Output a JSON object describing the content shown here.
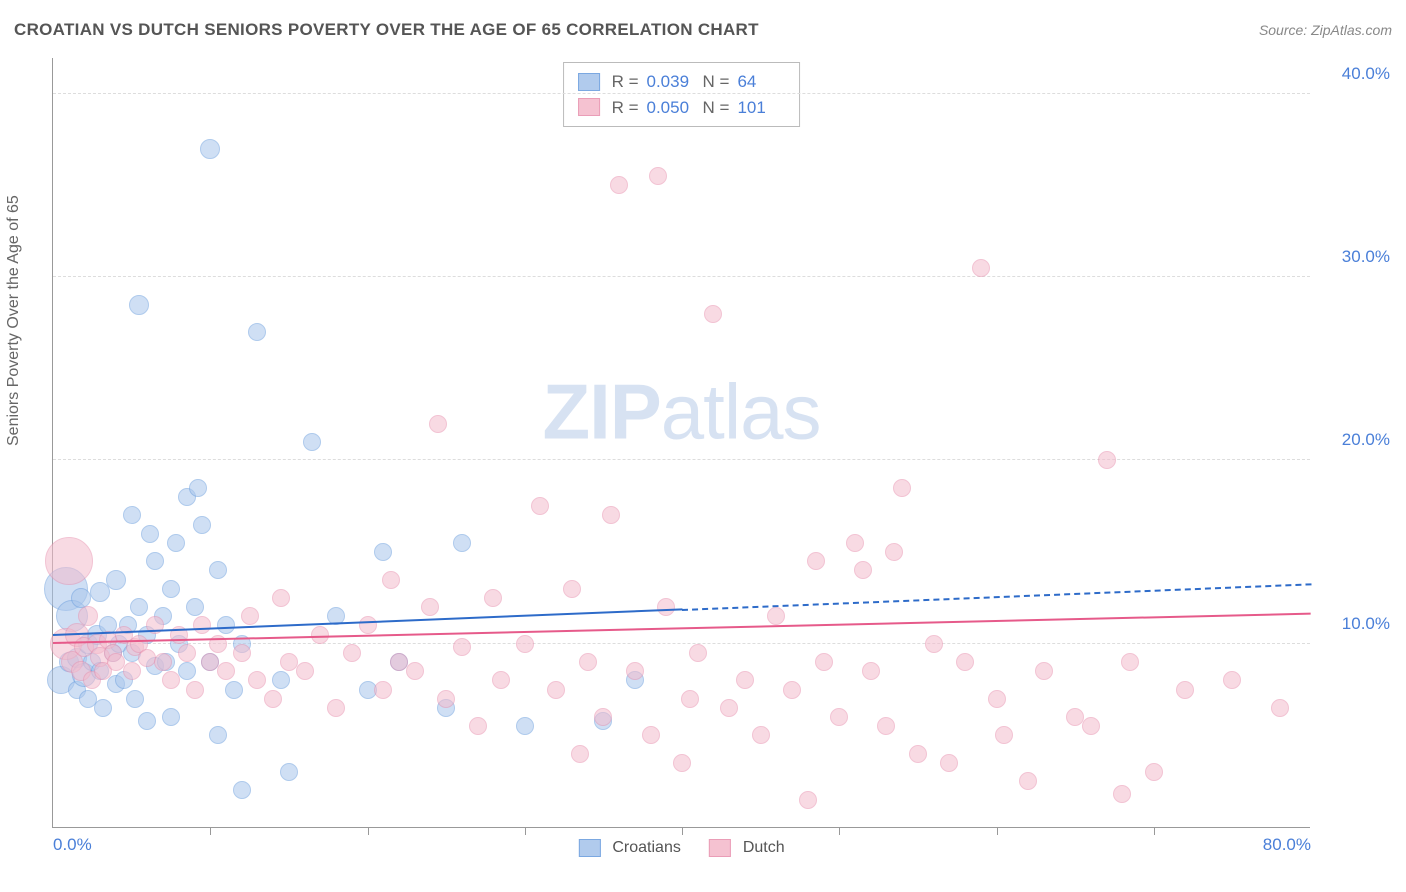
{
  "title": "CROATIAN VS DUTCH SENIORS POVERTY OVER THE AGE OF 65 CORRELATION CHART",
  "source": "Source: ZipAtlas.com",
  "ylabel": "Seniors Poverty Over the Age of 65",
  "watermark_bold": "ZIP",
  "watermark_rest": "atlas",
  "chart": {
    "type": "scatter",
    "xlim": [
      0,
      80
    ],
    "ylim": [
      0,
      42
    ],
    "xticks_minor": [
      10,
      20,
      30,
      40,
      50,
      60,
      70
    ],
    "xtick_labels": [
      {
        "v": 0,
        "label": "0.0%",
        "align": "left"
      },
      {
        "v": 80,
        "label": "80.0%",
        "align": "right"
      }
    ],
    "ytick_labels": [
      {
        "v": 10,
        "label": "10.0%"
      },
      {
        "v": 20,
        "label": "20.0%"
      },
      {
        "v": 30,
        "label": "30.0%"
      },
      {
        "v": 40,
        "label": "40.0%"
      }
    ],
    "grid_color": "#dddddd",
    "background_color": "#ffffff",
    "axis_color": "#999999"
  },
  "series": [
    {
      "key": "croatians",
      "label": "Croatians",
      "fill": "#a9c6ec",
      "stroke": "#6d9fde",
      "fill_opacity": 0.55,
      "marker_r": 9,
      "trend": {
        "x0": 0,
        "y0": 10.4,
        "x1": 40,
        "y1": 11.8,
        "x_extend": 80,
        "y_extend": 13.2,
        "color": "#2d6bc9"
      },
      "R_label": "R = ",
      "R": "0.039",
      "N_label": "N = ",
      "N": "64",
      "points": [
        [
          0.5,
          8.0,
          14
        ],
        [
          0.8,
          13.0,
          22
        ],
        [
          1.0,
          9.0,
          10
        ],
        [
          1.2,
          11.5,
          16
        ],
        [
          1.5,
          9.2,
          10
        ],
        [
          1.5,
          7.5,
          9
        ],
        [
          1.8,
          12.5,
          10
        ],
        [
          2.0,
          8.3,
          12
        ],
        [
          2.2,
          10.0,
          10
        ],
        [
          2.2,
          7.0,
          9
        ],
        [
          2.5,
          9.0,
          9
        ],
        [
          2.8,
          10.5,
          10
        ],
        [
          3.0,
          8.5,
          9
        ],
        [
          3.0,
          12.8,
          10
        ],
        [
          3.2,
          6.5,
          9
        ],
        [
          3.5,
          11.0,
          9
        ],
        [
          3.8,
          9.5,
          9
        ],
        [
          4.0,
          13.5,
          10
        ],
        [
          4.0,
          7.8,
          9
        ],
        [
          4.2,
          10.0,
          9
        ],
        [
          4.5,
          8.0,
          9
        ],
        [
          4.8,
          11.0,
          9
        ],
        [
          5.0,
          9.5,
          9
        ],
        [
          5.0,
          17.0,
          9
        ],
        [
          5.2,
          7.0,
          9
        ],
        [
          5.5,
          12.0,
          9
        ],
        [
          5.5,
          28.5,
          10
        ],
        [
          6.0,
          10.5,
          9
        ],
        [
          6.0,
          5.8,
          9
        ],
        [
          6.2,
          16.0,
          9
        ],
        [
          6.5,
          14.5,
          9
        ],
        [
          6.5,
          8.8,
          9
        ],
        [
          7.0,
          11.5,
          9
        ],
        [
          7.2,
          9.0,
          9
        ],
        [
          7.5,
          13.0,
          9
        ],
        [
          7.5,
          6.0,
          9
        ],
        [
          7.8,
          15.5,
          9
        ],
        [
          8.0,
          10.0,
          9
        ],
        [
          8.5,
          18.0,
          9
        ],
        [
          8.5,
          8.5,
          9
        ],
        [
          9.0,
          12.0,
          9
        ],
        [
          9.2,
          18.5,
          9
        ],
        [
          9.5,
          16.5,
          9
        ],
        [
          10.0,
          37.0,
          10
        ],
        [
          10.0,
          9.0,
          9
        ],
        [
          10.5,
          14.0,
          9
        ],
        [
          10.5,
          5.0,
          9
        ],
        [
          11.0,
          11.0,
          9
        ],
        [
          11.5,
          7.5,
          9
        ],
        [
          12.0,
          2.0,
          9
        ],
        [
          12.0,
          10.0,
          9
        ],
        [
          13.0,
          27.0,
          9
        ],
        [
          14.5,
          8.0,
          9
        ],
        [
          15.0,
          3.0,
          9
        ],
        [
          16.5,
          21.0,
          9
        ],
        [
          18.0,
          11.5,
          9
        ],
        [
          20.0,
          7.5,
          9
        ],
        [
          21.0,
          15.0,
          9
        ],
        [
          22.0,
          9.0,
          9
        ],
        [
          25.0,
          6.5,
          9
        ],
        [
          26.0,
          15.5,
          9
        ],
        [
          30.0,
          5.5,
          9
        ],
        [
          35.0,
          5.8,
          9
        ],
        [
          37.0,
          8.0,
          9
        ]
      ]
    },
    {
      "key": "dutch",
      "label": "Dutch",
      "fill": "#f4bccd",
      "stroke": "#e893b0",
      "fill_opacity": 0.55,
      "marker_r": 9,
      "trend": {
        "x0": 0,
        "y0": 10.0,
        "x1": 80,
        "y1": 11.6,
        "color": "#e65a8a"
      },
      "R_label": "R = ",
      "R": "0.050",
      "N_label": "N = ",
      "N": "101",
      "points": [
        [
          0.8,
          10.0,
          16
        ],
        [
          1.0,
          14.5,
          24
        ],
        [
          1.2,
          9.0,
          11
        ],
        [
          1.5,
          10.5,
          12
        ],
        [
          1.8,
          8.5,
          10
        ],
        [
          2.0,
          9.8,
          10
        ],
        [
          2.2,
          11.5,
          10
        ],
        [
          2.5,
          8.0,
          9
        ],
        [
          2.8,
          10.0,
          10
        ],
        [
          3.0,
          9.3,
          10
        ],
        [
          3.2,
          8.5,
          9
        ],
        [
          3.5,
          10.2,
          9
        ],
        [
          3.8,
          9.5,
          9
        ],
        [
          4.0,
          9.0,
          9
        ],
        [
          4.5,
          10.5,
          9
        ],
        [
          5.0,
          8.5,
          9
        ],
        [
          5.2,
          9.8,
          9
        ],
        [
          5.5,
          10.0,
          9
        ],
        [
          6.0,
          9.2,
          9
        ],
        [
          6.5,
          11.0,
          9
        ],
        [
          7.0,
          9.0,
          9
        ],
        [
          7.5,
          8.0,
          9
        ],
        [
          8.0,
          10.5,
          9
        ],
        [
          8.5,
          9.5,
          9
        ],
        [
          9.0,
          7.5,
          9
        ],
        [
          9.5,
          11.0,
          9
        ],
        [
          10.0,
          9.0,
          9
        ],
        [
          10.5,
          10.0,
          9
        ],
        [
          11.0,
          8.5,
          9
        ],
        [
          12.0,
          9.5,
          9
        ],
        [
          12.5,
          11.5,
          9
        ],
        [
          13.0,
          8.0,
          9
        ],
        [
          14.0,
          7.0,
          9
        ],
        [
          14.5,
          12.5,
          9
        ],
        [
          15.0,
          9.0,
          9
        ],
        [
          16.0,
          8.5,
          9
        ],
        [
          17.0,
          10.5,
          9
        ],
        [
          18.0,
          6.5,
          9
        ],
        [
          19.0,
          9.5,
          9
        ],
        [
          20.0,
          11.0,
          9
        ],
        [
          21.0,
          7.5,
          9
        ],
        [
          21.5,
          13.5,
          9
        ],
        [
          22.0,
          9.0,
          9
        ],
        [
          23.0,
          8.5,
          9
        ],
        [
          24.0,
          12.0,
          9
        ],
        [
          24.5,
          22.0,
          9
        ],
        [
          25.0,
          7.0,
          9
        ],
        [
          26.0,
          9.8,
          9
        ],
        [
          27.0,
          5.5,
          9
        ],
        [
          28.0,
          12.5,
          9
        ],
        [
          28.5,
          8.0,
          9
        ],
        [
          30.0,
          10.0,
          9
        ],
        [
          31.0,
          17.5,
          9
        ],
        [
          32.0,
          7.5,
          9
        ],
        [
          33.0,
          13.0,
          9
        ],
        [
          33.5,
          4.0,
          9
        ],
        [
          34.0,
          9.0,
          9
        ],
        [
          35.0,
          6.0,
          9
        ],
        [
          35.5,
          17.0,
          9
        ],
        [
          36.0,
          35.0,
          9
        ],
        [
          37.0,
          8.5,
          9
        ],
        [
          38.0,
          5.0,
          9
        ],
        [
          38.5,
          35.5,
          9
        ],
        [
          39.0,
          12.0,
          9
        ],
        [
          40.0,
          3.5,
          9
        ],
        [
          40.5,
          7.0,
          9
        ],
        [
          41.0,
          9.5,
          9
        ],
        [
          42.0,
          28.0,
          9
        ],
        [
          43.0,
          6.5,
          9
        ],
        [
          44.0,
          8.0,
          9
        ],
        [
          45.0,
          5.0,
          9
        ],
        [
          46.0,
          11.5,
          9
        ],
        [
          47.0,
          7.5,
          9
        ],
        [
          48.0,
          1.5,
          9
        ],
        [
          48.5,
          14.5,
          9
        ],
        [
          49.0,
          9.0,
          9
        ],
        [
          50.0,
          6.0,
          9
        ],
        [
          51.0,
          15.5,
          9
        ],
        [
          51.5,
          14.0,
          9
        ],
        [
          52.0,
          8.5,
          9
        ],
        [
          53.0,
          5.5,
          9
        ],
        [
          53.5,
          15.0,
          9
        ],
        [
          54.0,
          18.5,
          9
        ],
        [
          55.0,
          4.0,
          9
        ],
        [
          56.0,
          10.0,
          9
        ],
        [
          57.0,
          3.5,
          9
        ],
        [
          58.0,
          9.0,
          9
        ],
        [
          59.0,
          30.5,
          9
        ],
        [
          60.0,
          7.0,
          9
        ],
        [
          60.5,
          5.0,
          9
        ],
        [
          62.0,
          2.5,
          9
        ],
        [
          63.0,
          8.5,
          9
        ],
        [
          65.0,
          6.0,
          9
        ],
        [
          66.0,
          5.5,
          9
        ],
        [
          67.0,
          20.0,
          9
        ],
        [
          68.0,
          1.8,
          9
        ],
        [
          68.5,
          9.0,
          9
        ],
        [
          70.0,
          3.0,
          9
        ],
        [
          72.0,
          7.5,
          9
        ],
        [
          75.0,
          8.0,
          9
        ],
        [
          78.0,
          6.5,
          9
        ]
      ]
    }
  ],
  "legend": {
    "items": [
      {
        "series": "croatians"
      },
      {
        "series": "dutch"
      }
    ]
  }
}
